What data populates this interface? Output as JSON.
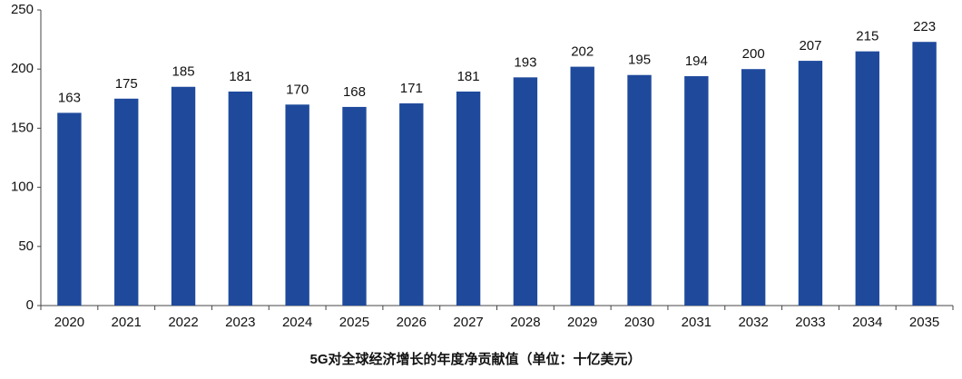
{
  "chart_data": {
    "type": "bar",
    "title": "5G对全球经济增长的年度净贡献值（单位：十亿美元）",
    "categories": [
      "2020",
      "2021",
      "2022",
      "2023",
      "2024",
      "2025",
      "2026",
      "2027",
      "2028",
      "2029",
      "2030",
      "2031",
      "2032",
      "2033",
      "2034",
      "2035"
    ],
    "values": [
      163,
      175,
      185,
      181,
      170,
      168,
      171,
      181,
      193,
      202,
      195,
      194,
      200,
      207,
      215,
      223
    ],
    "color": "#1f4a9c",
    "ylim": [
      0,
      250
    ],
    "yticks": [
      0,
      50,
      100,
      150,
      200,
      250
    ],
    "grid": false
  }
}
